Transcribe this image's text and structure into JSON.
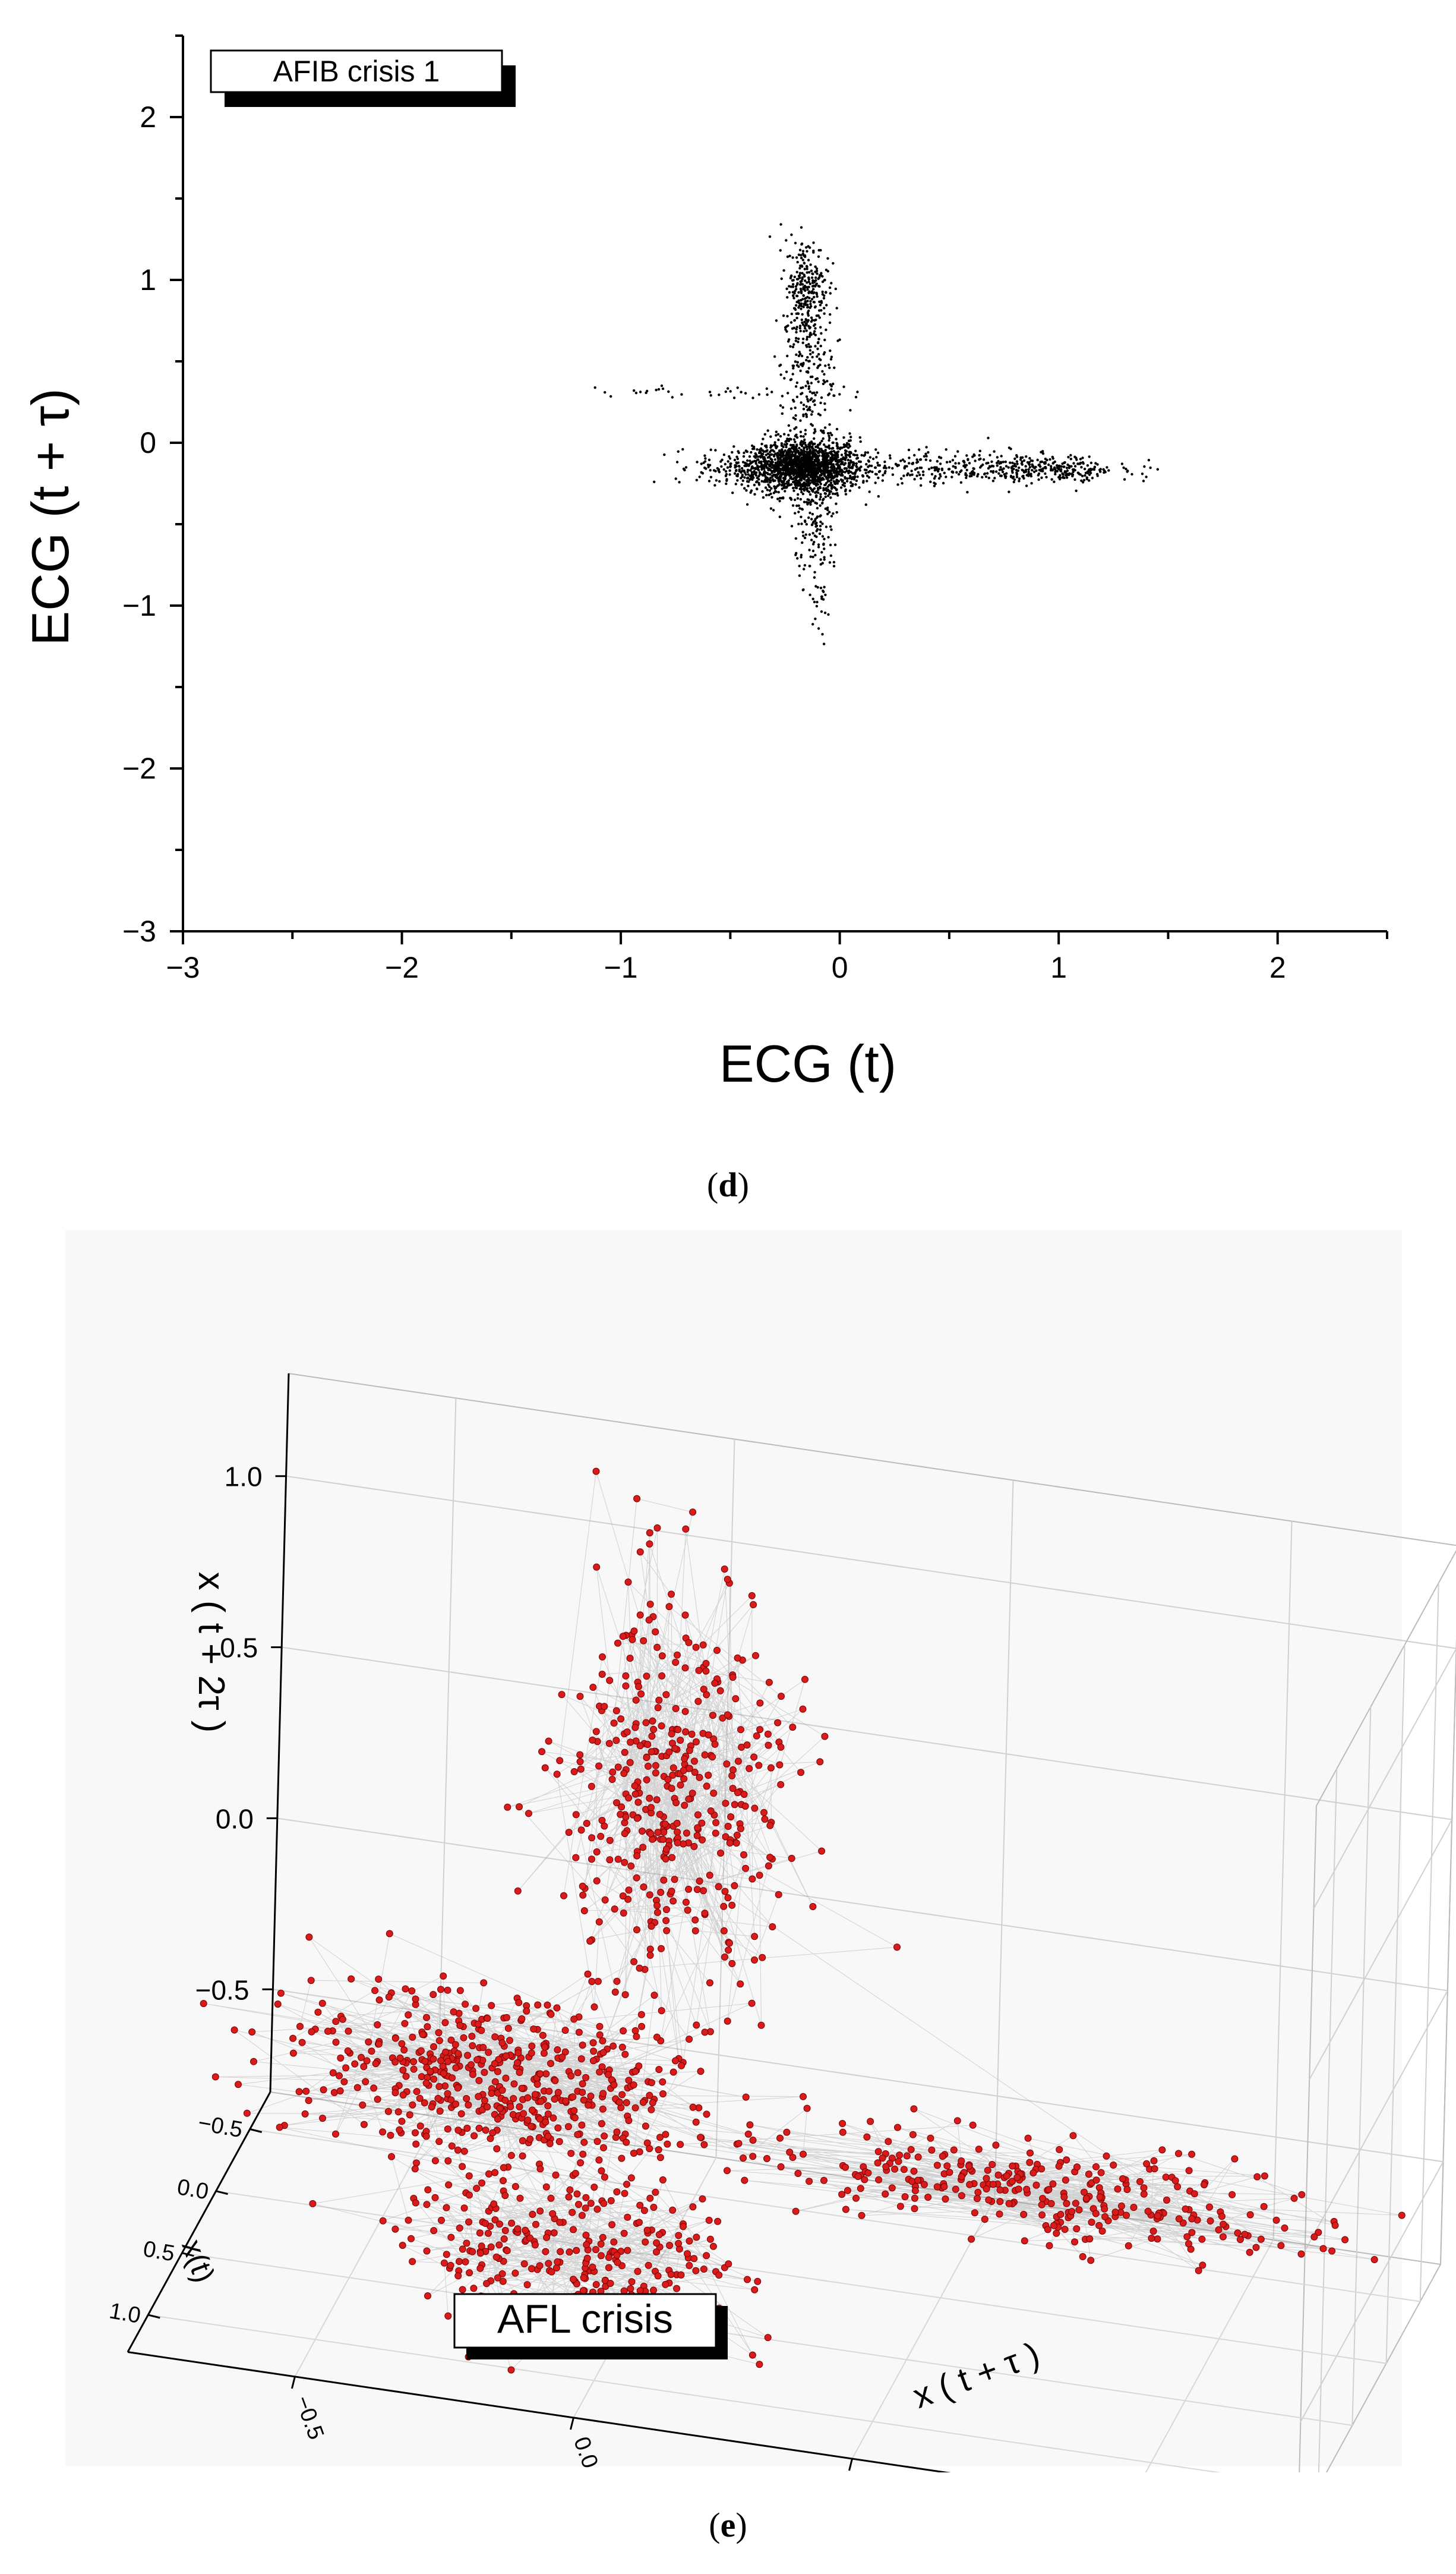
{
  "panels": {
    "d": {
      "caption_label": "d"
    },
    "e": {
      "caption_label": "e"
    }
  },
  "chart_data": [
    {
      "type": "scatter",
      "panel": "d",
      "legend_text": "AFIB crisis 1",
      "xlabel": "ECG (t)",
      "ylabel": "ECG (t + τ)",
      "xlim": [
        -3,
        2.5
      ],
      "ylim": [
        -3,
        2.5
      ],
      "xticks": [
        -3,
        -2,
        -1,
        0,
        1,
        2
      ],
      "xtick_labels": [
        "−3",
        "−2",
        "−1",
        "0",
        "1",
        "2"
      ],
      "yticks": [
        -3,
        -2,
        -1,
        0,
        1,
        2
      ],
      "ytick_labels": [
        "−3",
        "−2",
        "−1",
        "0",
        "1",
        "2"
      ],
      "grid": false,
      "legend_position": "top-left",
      "point_color": "#000000",
      "series": [
        {
          "clusters": [
            {
              "cx": -0.15,
              "cy": -0.15,
              "sx": 0.12,
              "sy": 0.09,
              "n": 1400
            },
            {
              "cx": -0.35,
              "cy": -0.15,
              "sx": 0.15,
              "sy": 0.06,
              "n": 350
            },
            {
              "cx": -0.15,
              "cy": 0.95,
              "sx": 0.05,
              "sy": 0.15,
              "n": 260
            },
            {
              "cx": -0.15,
              "cy": 0.45,
              "sx": 0.06,
              "sy": 0.25,
              "n": 220
            },
            {
              "cx": 0.55,
              "cy": -0.15,
              "sx": 0.35,
              "sy": 0.05,
              "n": 380
            },
            {
              "cx": 1.0,
              "cy": -0.17,
              "sx": 0.13,
              "sy": 0.04,
              "n": 150
            },
            {
              "cx": -0.1,
              "cy": -0.55,
              "sx": 0.05,
              "sy": 0.15,
              "n": 120
            },
            {
              "cx": -0.1,
              "cy": -1.0,
              "sx": 0.03,
              "sy": 0.12,
              "n": 25
            },
            {
              "cx": -0.6,
              "cy": 0.3,
              "sx": 0.3,
              "sy": 0.03,
              "n": 35
            }
          ]
        }
      ]
    },
    {
      "type": "scatter",
      "projection": "3d",
      "panel": "e",
      "legend_text": "AFL crisis",
      "xlabel": "x(t)",
      "ylabel": "x ( t + τ )",
      "zlabel": "x ( t + 2τ )",
      "x_ticks": [
        "−0.5",
        "0.0",
        "0.5",
        "1.0"
      ],
      "y_ticks": [
        "−0.5",
        "0.0",
        "0.5",
        "1.0"
      ],
      "z_ticks": [
        "−0.5",
        "0.0",
        "0.5",
        "1.0"
      ],
      "grid": true,
      "legend_position": "bottom-left",
      "point_color": "#d81b1b",
      "line_color": "#8a8a8a",
      "series": [
        {
          "clusters": [
            {
              "cx": 0.0,
              "cy": 0.0,
              "cz": 0.55,
              "sx": 0.1,
              "sy": 0.1,
              "sz": 0.3,
              "n": 420
            },
            {
              "cx": 0.0,
              "cy": 0.7,
              "cz": -0.45,
              "sx": 0.1,
              "sy": 0.25,
              "sz": 0.06,
              "n": 320
            },
            {
              "cx": 0.0,
              "cy": -0.3,
              "cz": -0.35,
              "sx": 0.18,
              "sy": 0.18,
              "sz": 0.1,
              "n": 520
            },
            {
              "cx": 0.55,
              "cy": -0.1,
              "cz": -0.6,
              "sx": 0.2,
              "sy": 0.15,
              "sz": 0.1,
              "n": 300
            }
          ]
        }
      ]
    }
  ]
}
